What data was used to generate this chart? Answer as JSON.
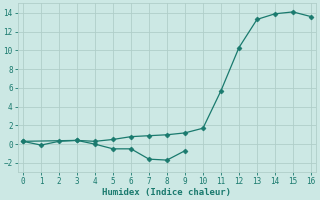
{
  "x": [
    0,
    1,
    2,
    3,
    4,
    5,
    6,
    7,
    8,
    9,
    10,
    11,
    12,
    13,
    14,
    15,
    16
  ],
  "upper_line": [
    0.3,
    -0.1,
    0.3,
    0.4,
    0.3,
    0.5,
    0.8,
    0.9,
    1.0,
    1.2,
    1.7,
    5.7,
    10.3,
    13.3,
    13.9,
    14.1,
    13.6
  ],
  "lower_line": [
    0.3,
    null,
    null,
    0.4,
    0.0,
    -0.5,
    -0.5,
    -1.6,
    -1.7,
    -0.7,
    null,
    null,
    null,
    null,
    null,
    null,
    null
  ],
  "line_color": "#1a7a6e",
  "bg_color": "#cce8e4",
  "grid_color": "#b0cec9",
  "xlabel": "Humidex (Indice chaleur)",
  "ylim": [
    -3,
    15
  ],
  "xlim": [
    -0.3,
    16.3
  ],
  "xticks": [
    0,
    1,
    2,
    3,
    4,
    5,
    6,
    7,
    8,
    9,
    10,
    11,
    12,
    13,
    14,
    15,
    16
  ],
  "yticks": [
    -2,
    0,
    2,
    4,
    6,
    8,
    10,
    12,
    14
  ]
}
